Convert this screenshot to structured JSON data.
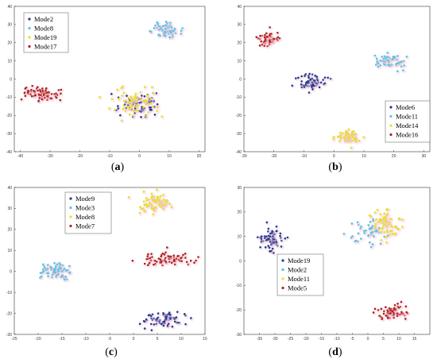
{
  "chart_data": [
    {
      "type": "scatter",
      "caption": "(a)",
      "caption_letter": "a",
      "xlim": [
        -42,
        22
      ],
      "ylim": [
        -40,
        40
      ],
      "xticks": [
        -40,
        -30,
        -20,
        -10,
        0,
        10,
        20
      ],
      "yticks": [
        -40,
        -30,
        -20,
        -10,
        0,
        10,
        20,
        30,
        40
      ],
      "legend_position": "top-left",
      "series": [
        {
          "name": "Mode2",
          "color": "#1f3a93",
          "center": [
            -1,
            -14
          ],
          "spread": [
            5,
            4
          ],
          "count": 70
        },
        {
          "name": "Mode8",
          "color": "#56c2e6",
          "center": [
            9,
            27
          ],
          "spread": [
            3.5,
            2.5
          ],
          "count": 60
        },
        {
          "name": "Mode19",
          "color": "#e8e020",
          "center": [
            -2,
            -13
          ],
          "spread": [
            6,
            5
          ],
          "count": 70
        },
        {
          "name": "Mode17",
          "color": "#b0201c",
          "center": [
            -33,
            -8
          ],
          "spread": [
            4,
            2.5
          ],
          "count": 70
        }
      ]
    },
    {
      "type": "scatter",
      "caption": "(b)",
      "caption_letter": "b",
      "xlim": [
        -30,
        32
      ],
      "ylim": [
        -40,
        40
      ],
      "xticks": [
        -30,
        -20,
        -10,
        0,
        10,
        20,
        30
      ],
      "yticks": [
        -40,
        -30,
        -20,
        -10,
        0,
        10,
        20,
        30,
        40
      ],
      "legend_position": "bottom-right",
      "series": [
        {
          "name": "Mode6",
          "color": "#1f3a93",
          "center": [
            -7,
            -2
          ],
          "spread": [
            3,
            3
          ],
          "count": 60
        },
        {
          "name": "Mode11",
          "color": "#56c2e6",
          "center": [
            19,
            10
          ],
          "spread": [
            3,
            2.5
          ],
          "count": 60
        },
        {
          "name": "Mode14",
          "color": "#e8e020",
          "center": [
            5,
            -32
          ],
          "spread": [
            3,
            2.5
          ],
          "count": 60
        },
        {
          "name": "Mode16",
          "color": "#b0201c",
          "center": [
            -22,
            22
          ],
          "spread": [
            2.5,
            3
          ],
          "count": 55
        }
      ]
    },
    {
      "type": "scatter",
      "caption": "(c)",
      "caption_letter": "c",
      "xlim": [
        -25,
        15
      ],
      "ylim": [
        -30,
        40
      ],
      "xticks": [
        -25,
        -20,
        -15,
        -10,
        -5,
        0,
        5,
        10,
        15
      ],
      "yticks": [
        -30,
        -20,
        -10,
        0,
        10,
        20,
        30,
        40
      ],
      "legend_position": "top-center",
      "series": [
        {
          "name": "Mode9",
          "color": "#1f3a93",
          "center": [
            6.5,
            -23
          ],
          "spread": [
            3,
            2.5
          ],
          "count": 75
        },
        {
          "name": "Mode3",
          "color": "#56c2e6",
          "center": [
            -16.5,
            0
          ],
          "spread": [
            2.2,
            3
          ],
          "count": 70
        },
        {
          "name": "Mode8",
          "color": "#e8e020",
          "center": [
            4.5,
            33
          ],
          "spread": [
            2.5,
            3
          ],
          "count": 75
        },
        {
          "name": "Mode7",
          "color": "#b0201c",
          "center": [
            7,
            6
          ],
          "spread": [
            4,
            2
          ],
          "count": 70
        }
      ]
    },
    {
      "type": "scatter",
      "caption": "(d)",
      "caption_letter": "d",
      "xlim": [
        -40,
        20
      ],
      "ylim": [
        -30,
        30
      ],
      "xticks": [
        -35,
        -30,
        -25,
        -20,
        -15,
        -10,
        -5,
        0,
        5,
        10,
        15
      ],
      "yticks": [
        -30,
        -20,
        -10,
        0,
        10,
        20,
        30
      ],
      "legend_position": "bottom-left",
      "series": [
        {
          "name": "Mode19",
          "color": "#1f3a93",
          "center": [
            -31,
            9
          ],
          "spread": [
            2.5,
            3
          ],
          "count": 75
        },
        {
          "name": "Mode2",
          "color": "#56c2e6",
          "center": [
            0,
            12
          ],
          "spread": [
            3.5,
            4
          ],
          "count": 45
        },
        {
          "name": "Mode11",
          "color": "#e8e020",
          "center": [
            6,
            14
          ],
          "spread": [
            4,
            4
          ],
          "count": 70
        },
        {
          "name": "Mode5",
          "color": "#b0201c",
          "center": [
            8,
            -21
          ],
          "spread": [
            3.5,
            2
          ],
          "count": 70
        }
      ]
    }
  ]
}
